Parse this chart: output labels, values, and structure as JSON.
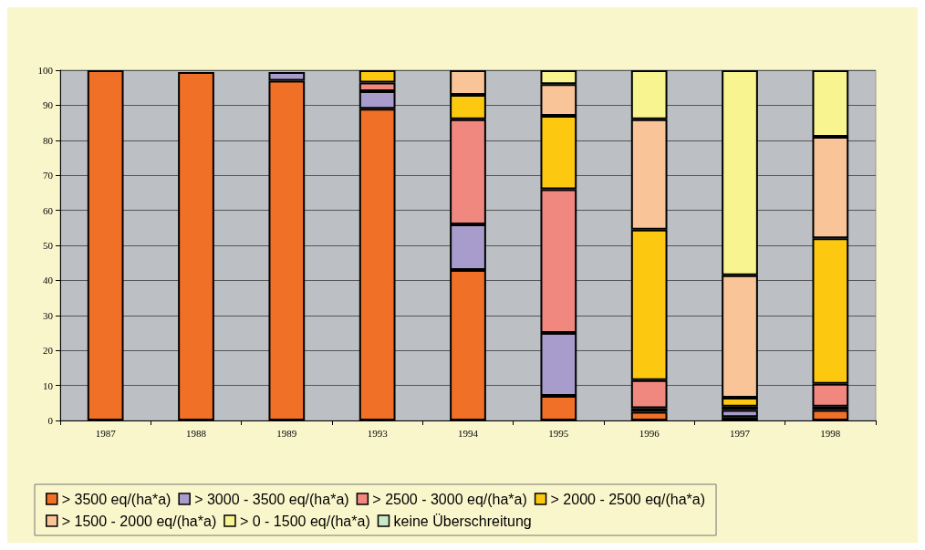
{
  "chart_data": {
    "type": "bar",
    "stacked": true,
    "categories": [
      "1987",
      "1988",
      "1989",
      "1993",
      "1994",
      "1995",
      "1996",
      "1997",
      "1998"
    ],
    "ylim": [
      0,
      100
    ],
    "yticks": [
      0,
      10,
      20,
      30,
      40,
      50,
      60,
      70,
      80,
      90,
      100
    ],
    "grid": "y",
    "legend": "bottom",
    "series": [
      {
        "name": "> 3500 eq/(ha*a)",
        "color": "#f07028",
        "values": [
          100,
          99.5,
          97,
          89,
          43,
          7,
          2.5,
          1,
          3
        ]
      },
      {
        "name": "> 3000 - 3500 eq/(ha*a)",
        "color": "#a89ccc",
        "values": [
          null,
          null,
          2.5,
          5,
          13,
          18,
          1,
          2,
          1
        ]
      },
      {
        "name": "> 2500 - 3000 eq/(ha*a)",
        "color": "#f08880",
        "values": [
          null,
          null,
          null,
          2.5,
          30,
          41,
          8,
          1,
          6.5
        ]
      },
      {
        "name": "> 2000 - 2500 eq/(ha*a)",
        "color": "#fcc810",
        "values": [
          null,
          null,
          null,
          3.5,
          7,
          21,
          43,
          2.5,
          41.5
        ]
      },
      {
        "name": "> 1500 - 2000 eq/(ha*a)",
        "color": "#f8c498",
        "values": [
          null,
          null,
          null,
          null,
          7,
          9,
          31.5,
          35,
          29
        ]
      },
      {
        "name": "> 0 - 1500 eq/(ha*a)",
        "color": "#f8f490",
        "values": [
          null,
          null,
          null,
          null,
          null,
          4,
          14,
          58.5,
          19
        ]
      },
      {
        "name": "keine Überschreitung",
        "color": "#c8e8c8",
        "values": [
          null,
          null,
          null,
          null,
          null,
          null,
          null,
          null,
          null
        ]
      }
    ]
  }
}
